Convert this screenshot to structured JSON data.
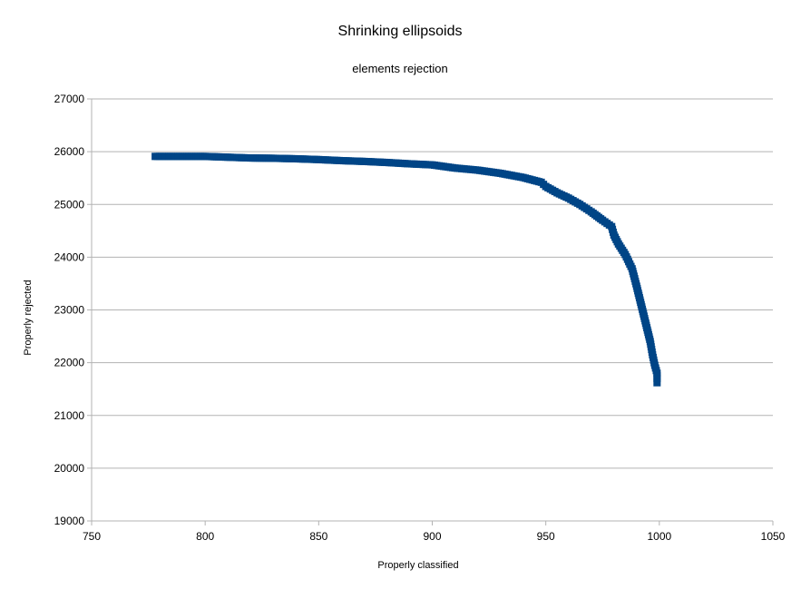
{
  "chart_data": {
    "type": "scatter",
    "title": "Shrinking ellipsoids",
    "subtitle": "elements rejection",
    "xlabel": "Properly classified",
    "ylabel": "Properly rejected",
    "xlim": [
      750,
      1050
    ],
    "ylim": [
      19000,
      27000
    ],
    "xticks": [
      "750",
      "800",
      "850",
      "900",
      "950",
      "1000",
      "1050"
    ],
    "yticks": [
      "19000",
      "20000",
      "21000",
      "22000",
      "23000",
      "24000",
      "25000",
      "26000",
      "27000"
    ],
    "grid": true,
    "legend": "none",
    "marker_color": "#004586",
    "series": [
      {
        "x": [
          778,
          790,
          800,
          810,
          820,
          830,
          840,
          850,
          860,
          870,
          880,
          890,
          900,
          905,
          910,
          920,
          930,
          940,
          948,
          950,
          955,
          960,
          965,
          970,
          975,
          979,
          980,
          982,
          985,
          988,
          990,
          992,
          994,
          996,
          997,
          998,
          999,
          999,
          999
        ],
        "y": [
          25910,
          25910,
          25910,
          25895,
          25880,
          25875,
          25865,
          25850,
          25830,
          25815,
          25795,
          25770,
          25750,
          25720,
          25690,
          25650,
          25590,
          25510,
          25420,
          25340,
          25220,
          25120,
          25000,
          24860,
          24700,
          24580,
          24420,
          24250,
          24050,
          23780,
          23450,
          23100,
          22750,
          22400,
          22150,
          21950,
          21800,
          21700,
          21620
        ]
      }
    ]
  }
}
